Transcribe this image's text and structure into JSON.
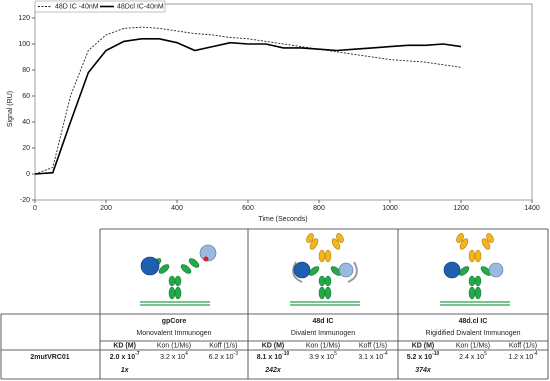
{
  "chart_data": {
    "type": "line",
    "x_label": "Time (Seconds)",
    "y_label": "Signal (RU)",
    "x": [
      0,
      50,
      100,
      150,
      200,
      250,
      300,
      350,
      400,
      450,
      500,
      550,
      600,
      650,
      700,
      750,
      800,
      850,
      900,
      950,
      1000,
      1050,
      1100,
      1150,
      1200
    ],
    "series": [
      {
        "name": "48D IC -40nM",
        "color": "#222222",
        "dash": true,
        "values": [
          0,
          5,
          60,
          95,
          107,
          112,
          113,
          112,
          110,
          108,
          107,
          105,
          104,
          102,
          100,
          98,
          96,
          94,
          92,
          90,
          88,
          87,
          86,
          84,
          82
        ]
      },
      {
        "name": "48Dcl IC-40nM",
        "color": "#000000",
        "dash": false,
        "values": [
          0,
          1,
          40,
          78,
          95,
          102,
          104,
          104,
          101,
          95,
          98,
          101,
          100,
          100,
          97,
          97,
          96,
          95,
          96,
          97,
          98,
          99,
          99,
          100,
          98
        ]
      }
    ],
    "xlim": [
      0,
      1400
    ],
    "xticks": [
      0,
      200,
      400,
      600,
      800,
      1000,
      1200,
      1400
    ],
    "ylim": [
      -20,
      120
    ],
    "yticks": [
      -20,
      0,
      20,
      40,
      60,
      80,
      100,
      120
    ],
    "grid": false,
    "legend": "top-left"
  },
  "table": {
    "subheaders": [
      "KD (M)",
      "Kon (1/Ms)",
      "Koff (1/s)"
    ],
    "row_label": "2mutVRC01",
    "columns": [
      {
        "title": "gpCore",
        "subtitle": "Monovalent Immunogen",
        "kd": {
          "base": "2.0 x 10",
          "exp": "-7"
        },
        "kon": {
          "base": "3.2 x 10",
          "exp": "4"
        },
        "koff": {
          "base": "6.2 x 10",
          "exp": "-3"
        },
        "fold": "1x"
      },
      {
        "title": "48d IC",
        "subtitle": "Divalent Immunogen",
        "kd": {
          "base": "8.1 x 10",
          "exp": "-10"
        },
        "kon": {
          "base": "3.9 x 10",
          "exp": "5"
        },
        "koff": {
          "base": "3.1 x 10",
          "exp": "-4"
        },
        "fold": "242x"
      },
      {
        "title": "48d.cl IC",
        "subtitle": "Rigidified Divalent Immunogen",
        "kd": {
          "base": "5.2 x 10",
          "exp": "-10"
        },
        "kon": {
          "base": "2.4 x 10",
          "exp": "5"
        },
        "koff": {
          "base": "1.2 x 10",
          "exp": "-4"
        },
        "fold": "374x"
      }
    ]
  }
}
